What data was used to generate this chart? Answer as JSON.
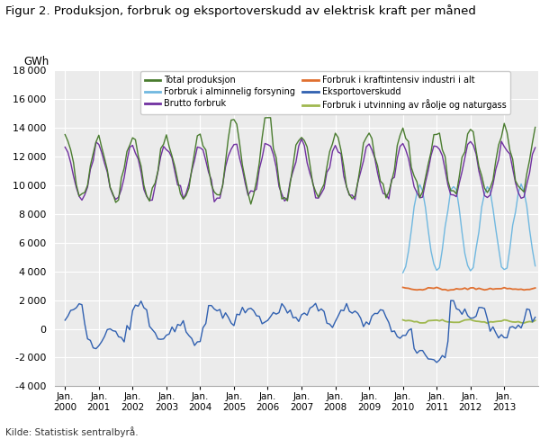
{
  "title": "Figur 2. Produksjon, forbruk og eksportoverskudd av elektrisk kraft per måned",
  "ylabel": "GWh",
  "source": "Kilde: Statistisk sentralbyrå.",
  "ylim": [
    -4000,
    18000
  ],
  "yticks": [
    -4000,
    -2000,
    0,
    2000,
    4000,
    6000,
    8000,
    10000,
    12000,
    14000,
    16000,
    18000
  ],
  "xtick_years": [
    2000,
    2001,
    2002,
    2003,
    2004,
    2005,
    2006,
    2007,
    2008,
    2009,
    2010,
    2011,
    2012,
    2013
  ],
  "colors": {
    "total_produksjon": "#4a7c2f",
    "brutto_forbruk": "#7030a0",
    "eksportoverskudd": "#3060b0",
    "forbruk_alminnelig": "#70b8e0",
    "forbruk_kraftintensiv": "#e07030",
    "forbruk_utvinning": "#a0b850"
  },
  "bg_color": "#f0f0f0",
  "legend_labels": {
    "total_produksjon": "Total produksjon",
    "brutto_forbruk": "Brutto forbruk",
    "eksportoverskudd": "Eksportoverskudd",
    "forbruk_alminnelig": "Forbruk i alminnelig forsyning",
    "forbruk_kraftintensiv": "Forbruk i kraftintensiv industri i alt",
    "forbruk_utvinning": "Forbruk i utvinning av råolje og naturgass"
  }
}
